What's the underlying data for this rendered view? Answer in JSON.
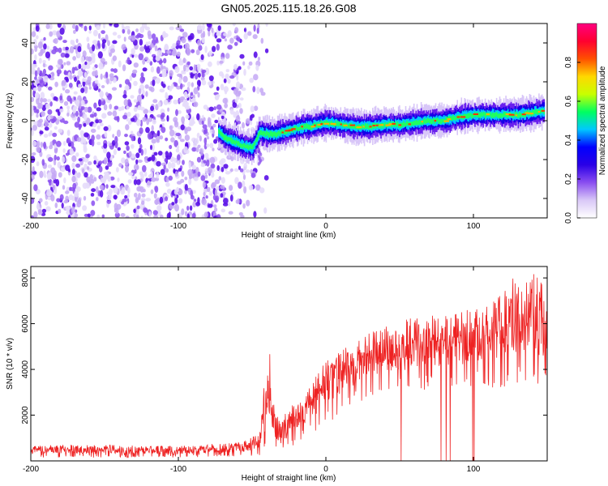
{
  "title": "GN05.2025.115.18.26.G08",
  "chart_data": [
    {
      "type": "heatmap",
      "xlabel": "Height of straight line (km)",
      "ylabel": "Frequency (Hz)",
      "xlim": [
        -200,
        150
      ],
      "ylim": [
        -50,
        50
      ],
      "x_ticks": [
        -200,
        -100,
        0,
        100
      ],
      "y_ticks": [
        -40,
        -20,
        0,
        20,
        40
      ],
      "ridge": {
        "x": [
          -73,
          -68,
          -62,
          -56,
          -50,
          -45,
          -40,
          -35,
          -30,
          -25,
          -20,
          -15,
          -10,
          -5,
          0,
          10,
          20,
          30,
          40,
          50,
          60,
          70,
          80,
          90,
          100,
          110,
          120,
          130,
          140,
          148
        ],
        "y": [
          -6,
          -9,
          -11,
          -13,
          -14,
          -6,
          -7,
          -7,
          -6,
          -5,
          -4,
          -3,
          -3,
          -2,
          -1,
          -2,
          -3,
          -3,
          -2,
          -2,
          -1,
          0,
          0,
          2,
          3,
          3,
          3,
          3,
          4,
          5
        ]
      },
      "noise_region_x": [
        -200,
        -40
      ],
      "colorbar": {
        "label": "Normalized spectral amplitude",
        "range": [
          0,
          1
        ],
        "ticks": [
          0.0,
          0.2,
          0.4,
          0.6,
          0.8
        ],
        "tick_labels": [
          "0.0",
          "0.2",
          "0.4",
          "0.6",
          "0.8"
        ],
        "colors": [
          "#ffffff",
          "#d9c8f7",
          "#8a4ef0",
          "#2a00e6",
          "#0000ff",
          "#00c8ff",
          "#00ff60",
          "#c8ff00",
          "#ffd800",
          "#ff5000",
          "#ff0030",
          "#ff0080"
        ]
      }
    },
    {
      "type": "line",
      "xlabel": "Height of straight line (km)",
      "ylabel": "SNR (10 * v/v)",
      "xlim": [
        -200,
        150
      ],
      "ylim": [
        0,
        8500
      ],
      "x_ticks": [
        -200,
        -100,
        0,
        100
      ],
      "y_ticks": [
        2000,
        4000,
        6000,
        8000
      ],
      "color": "#ee2222",
      "envelope": {
        "x": [
          -200,
          -150,
          -100,
          -60,
          -45,
          -42,
          -38,
          -36,
          -30,
          -20,
          -10,
          0,
          10,
          20,
          30,
          40,
          50,
          60,
          70,
          80,
          90,
          100,
          110,
          120,
          130,
          140,
          150
        ],
        "low": [
          150,
          150,
          150,
          200,
          150,
          150,
          200,
          400,
          200,
          800,
          1200,
          1500,
          2000,
          2500,
          2800,
          3000,
          3000,
          3000,
          3100,
          3100,
          3200,
          3200,
          3200,
          3200,
          3300,
          3200,
          3200
        ],
        "high": [
          700,
          700,
          650,
          800,
          1200,
          3200,
          5000,
          2800,
          2000,
          2600,
          3300,
          4500,
          4900,
          5200,
          5800,
          6000,
          6200,
          6300,
          6400,
          6400,
          6500,
          6700,
          7000,
          7500,
          8300,
          8300,
          7500
        ]
      }
    }
  ]
}
